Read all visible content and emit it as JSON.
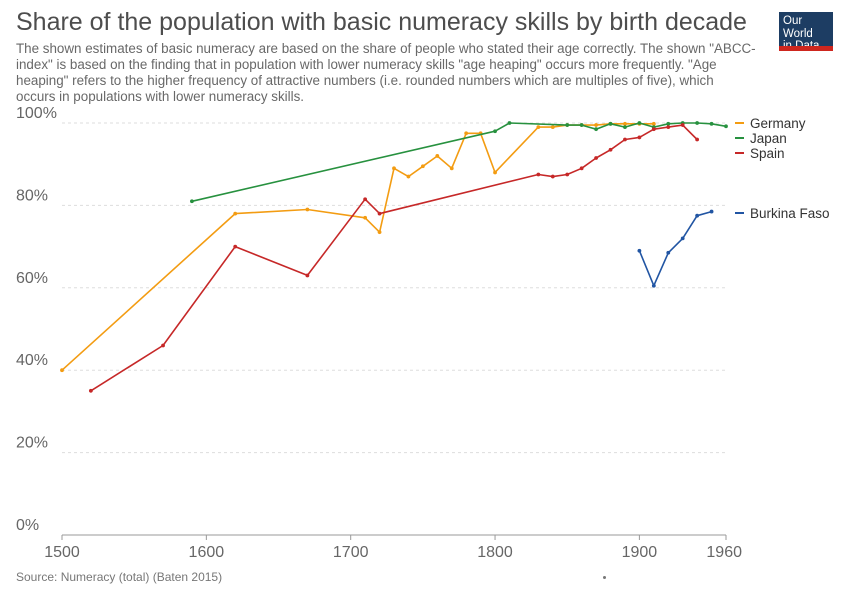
{
  "title": "Share of the population with basic numeracy skills by birth decade",
  "subtitle": "The shown estimates of basic numeracy are based on the share of people who stated their age correctly. The shown \"ABCC-index\" is based on the finding that in population with lower numeracy skills \"age heaping\" occurs more frequently. \"Age heaping\" refers to the higher frequency of attractive numbers (i.e. rounded numbers which are multiples of five), which occurs in populations with lower numeracy skills.",
  "logo": {
    "line1": "Our World",
    "line2": "in Data"
  },
  "source": "Source: Numeracy (total) (Baten 2015)",
  "chart_data": {
    "type": "line",
    "title": "Share of the population with basic numeracy skills by birth decade",
    "xlabel": "",
    "ylabel": "",
    "xlim": [
      1500,
      1960
    ],
    "ylim": [
      0,
      100
    ],
    "x_ticks": [
      1500,
      1600,
      1700,
      1800,
      1900,
      1960
    ],
    "y_ticks": [
      0,
      20,
      40,
      60,
      80,
      100
    ],
    "x_tick_labels": [
      "1500",
      "1600",
      "1700",
      "1800",
      "1900",
      "1960"
    ],
    "y_tick_labels": [
      "0%",
      "20%",
      "40%",
      "60%",
      "80%",
      "100%"
    ],
    "grid": true,
    "legend_position": "right",
    "series": [
      {
        "name": "Germany",
        "color": "#f39c12",
        "points": [
          [
            1500,
            40
          ],
          [
            1620,
            78
          ],
          [
            1670,
            79
          ],
          [
            1710,
            77
          ],
          [
            1720,
            73.5
          ],
          [
            1730,
            89
          ],
          [
            1740,
            87
          ],
          [
            1750,
            89.5
          ],
          [
            1760,
            92
          ],
          [
            1770,
            89
          ],
          [
            1780,
            97.5
          ],
          [
            1790,
            97.5
          ],
          [
            1800,
            88
          ],
          [
            1830,
            99
          ],
          [
            1840,
            99
          ],
          [
            1850,
            99.5
          ],
          [
            1860,
            99.5
          ],
          [
            1870,
            99.5
          ],
          [
            1880,
            99.8
          ],
          [
            1890,
            99.8
          ],
          [
            1900,
            99.8
          ],
          [
            1910,
            99.8
          ]
        ]
      },
      {
        "name": "Japan",
        "color": "#27913f",
        "points": [
          [
            1590,
            81
          ],
          [
            1800,
            98
          ],
          [
            1810,
            100
          ],
          [
            1850,
            99.5
          ],
          [
            1860,
            99.5
          ],
          [
            1870,
            98.5
          ],
          [
            1880,
            99.8
          ],
          [
            1890,
            99
          ],
          [
            1900,
            100
          ],
          [
            1910,
            99
          ],
          [
            1920,
            99.8
          ],
          [
            1930,
            100
          ],
          [
            1940,
            100
          ],
          [
            1950,
            99.8
          ],
          [
            1960,
            99.2
          ]
        ]
      },
      {
        "name": "Spain",
        "color": "#c62828",
        "points": [
          [
            1520,
            35
          ],
          [
            1570,
            46
          ],
          [
            1620,
            70
          ],
          [
            1670,
            63
          ],
          [
            1710,
            81.5
          ],
          [
            1720,
            78
          ],
          [
            1830,
            87.5
          ],
          [
            1840,
            87
          ],
          [
            1850,
            87.5
          ],
          [
            1860,
            89
          ],
          [
            1870,
            91.5
          ],
          [
            1880,
            93.5
          ],
          [
            1890,
            96
          ],
          [
            1900,
            96.5
          ],
          [
            1910,
            98.5
          ],
          [
            1920,
            99
          ],
          [
            1930,
            99.5
          ],
          [
            1940,
            96
          ]
        ]
      },
      {
        "name": "Burkina Faso",
        "color": "#2155a3",
        "points": [
          [
            1900,
            69
          ],
          [
            1910,
            60.5
          ],
          [
            1920,
            68.5
          ],
          [
            1930,
            72
          ],
          [
            1940,
            77.5
          ],
          [
            1950,
            78.5
          ]
        ]
      }
    ]
  }
}
